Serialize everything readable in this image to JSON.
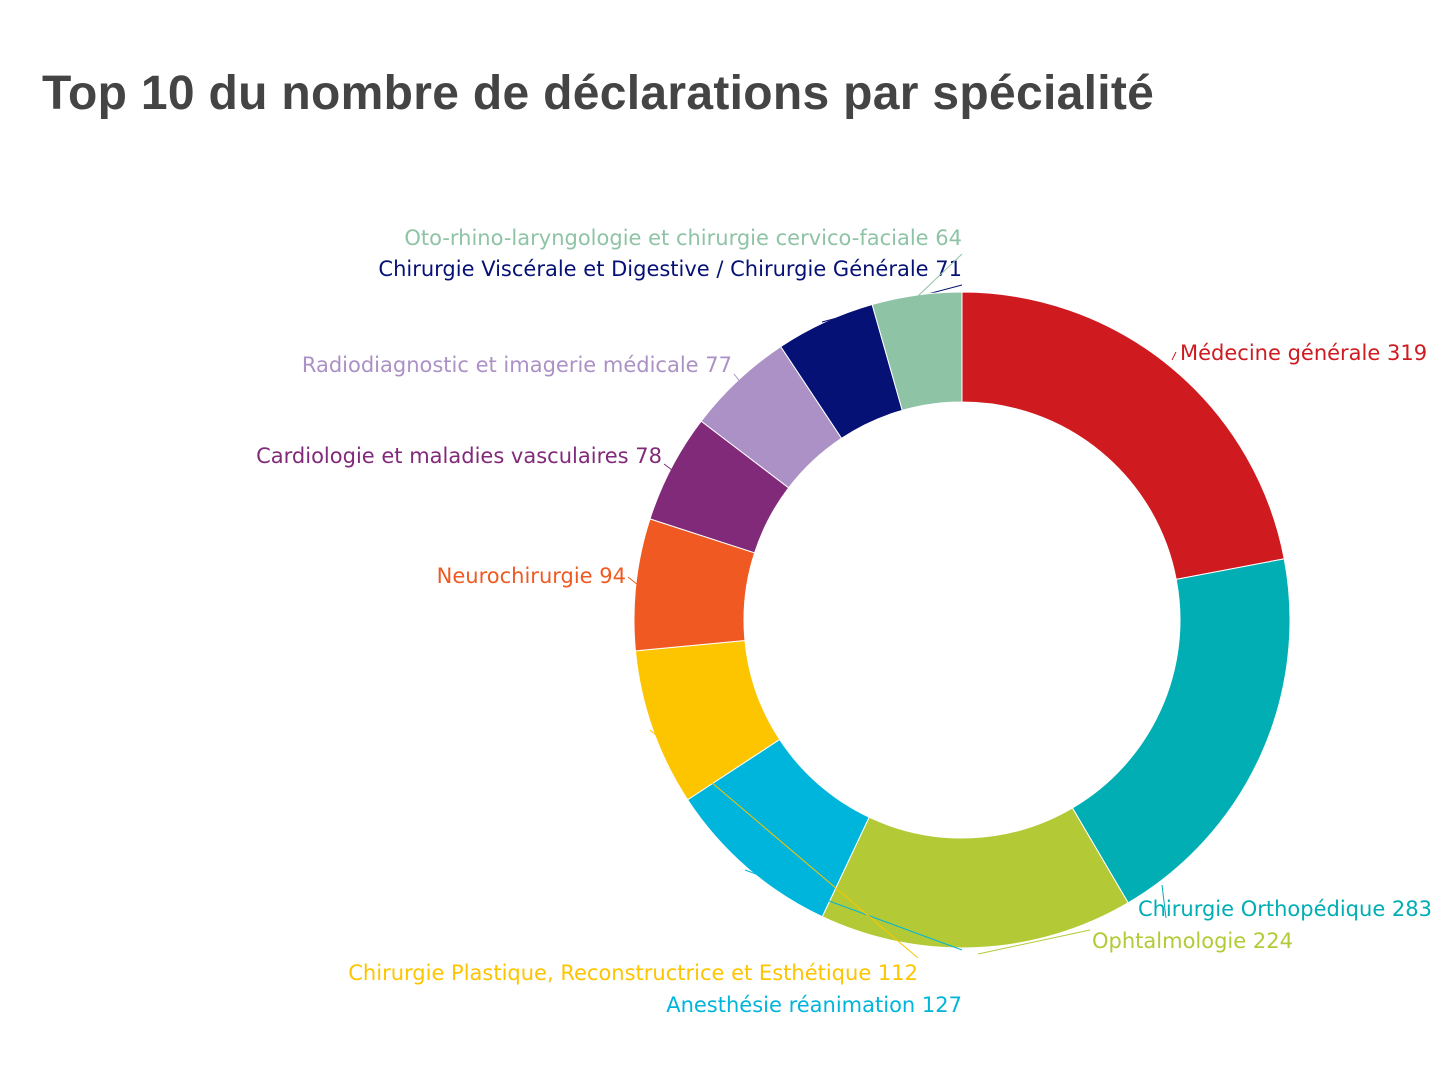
{
  "chart_data": {
    "type": "pie",
    "subtype": "donut",
    "title": "Top 10 du nombre de déclarations par spécialité",
    "categories": [
      "Médecine générale",
      "Chirurgie Orthopédique",
      "Ophtalmologie",
      "Anesthésie réanimation",
      "Chirurgie Plastique, Reconstructrice et Esthétique",
      "Neurochirurgie",
      "Cardiologie et maladies vasculaires",
      "Radiodiagnostic et imagerie médicale",
      "Chirurgie Viscérale et Digestive / Chirurgie Générale",
      "Oto-rhino-laryngologie et chirurgie cervico-faciale"
    ],
    "values": [
      319,
      283,
      224,
      127,
      112,
      94,
      78,
      77,
      71,
      64
    ],
    "colors": [
      "#CF1A1F",
      "#00AEB3",
      "#B3CA36",
      "#00B5DB",
      "#FDC400",
      "#F05A22",
      "#822A7A",
      "#AB91C5",
      "#061175",
      "#8FC3A6"
    ],
    "legend": "none"
  }
}
